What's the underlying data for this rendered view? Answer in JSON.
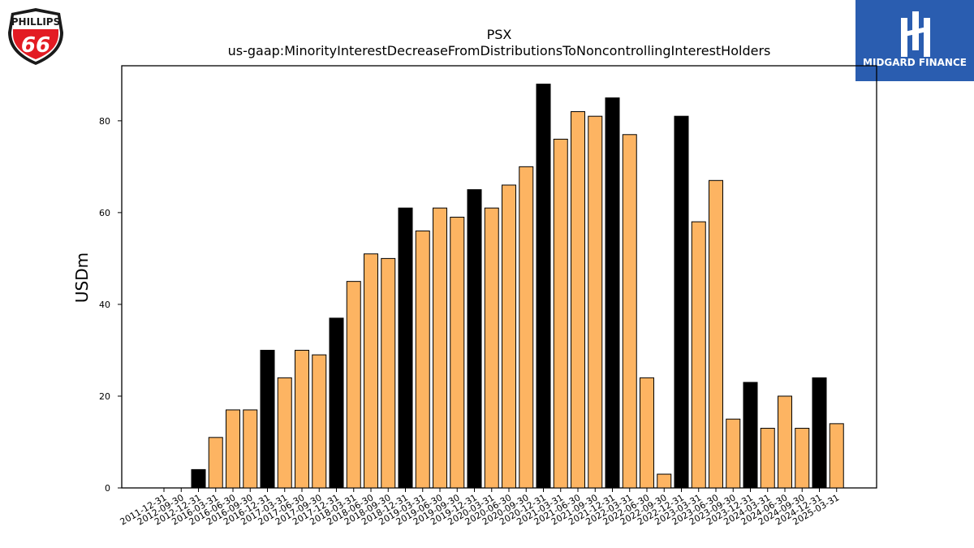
{
  "brand_left": {
    "line1": "PHILLIPS",
    "line2": "66"
  },
  "brand_right": {
    "name": "MIDGARD FINANCE",
    "bg": "#2a5db0"
  },
  "colors": {
    "highlight": "#000000",
    "normal": "#fdb462",
    "edge": "#000000"
  },
  "chart_data": {
    "type": "bar",
    "title": "PSX",
    "subtitle": "us-gaap:MinorityInterestDecreaseFromDistributionsToNoncontrollingInterestHolders",
    "xlabel": "",
    "ylabel": "USDm",
    "ylim": [
      0,
      92
    ],
    "yticks": [
      0,
      20,
      40,
      60,
      80
    ],
    "grid": false,
    "legend": "none",
    "categories": [
      "2011-12-31",
      "2012-09-30",
      "2012-12-31",
      "2016-03-31",
      "2016-06-30",
      "2016-09-30",
      "2016-12-31",
      "2017-03-31",
      "2017-06-30",
      "2017-09-30",
      "2017-12-31",
      "2018-03-31",
      "2018-06-30",
      "2018-09-30",
      "2018-12-31",
      "2019-03-31",
      "2019-06-30",
      "2019-09-30",
      "2019-12-31",
      "2020-03-31",
      "2020-06-30",
      "2020-09-30",
      "2020-12-31",
      "2021-03-31",
      "2021-06-30",
      "2021-09-30",
      "2021-12-31",
      "2022-03-31",
      "2022-06-30",
      "2022-09-30",
      "2022-12-31",
      "2023-03-31",
      "2023-06-30",
      "2023-09-30",
      "2023-12-31",
      "2024-03-31",
      "2024-06-30",
      "2024-09-30",
      "2024-12-31",
      "2025-03-31"
    ],
    "values": [
      0,
      0,
      4,
      11,
      17,
      17,
      30,
      24,
      30,
      29,
      37,
      45,
      51,
      50,
      61,
      56,
      61,
      59,
      65,
      61,
      66,
      70,
      88,
      76,
      82,
      81,
      85,
      77,
      24,
      3,
      81,
      58,
      67,
      15,
      23,
      13,
      20,
      13,
      24,
      14
    ],
    "highlight": [
      false,
      false,
      true,
      false,
      false,
      false,
      true,
      false,
      false,
      false,
      true,
      false,
      false,
      false,
      true,
      false,
      false,
      false,
      true,
      false,
      false,
      false,
      true,
      false,
      false,
      false,
      true,
      false,
      false,
      false,
      true,
      false,
      false,
      false,
      true,
      false,
      false,
      false,
      true,
      false
    ]
  }
}
